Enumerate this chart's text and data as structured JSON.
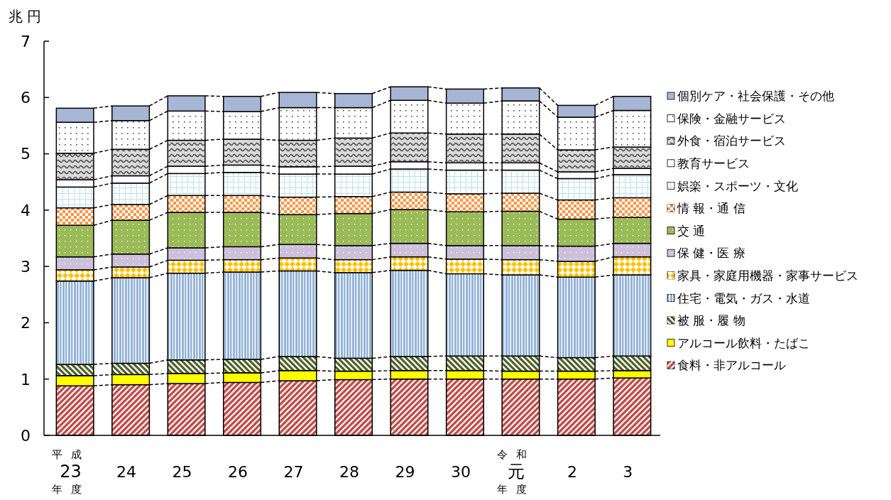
{
  "chart_data": {
    "type": "bar",
    "stacked": true,
    "ylabel": "兆 円",
    "categories": [
      "平成23年度",
      "24",
      "25",
      "26",
      "27",
      "28",
      "29",
      "30",
      "令和元年度",
      "2",
      "3"
    ],
    "ylim": [
      0,
      7
    ],
    "yticks": [
      0,
      1,
      2,
      3,
      4,
      5,
      6,
      7
    ],
    "grid": false,
    "legend": "right",
    "series": [
      {
        "name": "食料・非アルコール",
        "color": "#c0504d",
        "values": [
          0.88,
          0.9,
          0.92,
          0.94,
          0.97,
          0.99,
          1.0,
          1.0,
          1.0,
          1.0,
          1.02
        ]
      },
      {
        "name": "アルコール飲料・たばこ",
        "color": "#ffff00",
        "values": [
          0.18,
          0.18,
          0.18,
          0.17,
          0.18,
          0.15,
          0.15,
          0.15,
          0.14,
          0.14,
          0.13
        ]
      },
      {
        "name": "被 服・履 物",
        "color": "#4f6228",
        "values": [
          0.2,
          0.2,
          0.24,
          0.24,
          0.25,
          0.23,
          0.25,
          0.26,
          0.27,
          0.24,
          0.26
        ]
      },
      {
        "name": "住宅・電気・ガス・水道",
        "color": "#95b3d7",
        "values": [
          1.48,
          1.52,
          1.54,
          1.55,
          1.52,
          1.52,
          1.53,
          1.46,
          1.44,
          1.43,
          1.44
        ]
      },
      {
        "name": "家具・家庭用機器・家事サービス",
        "color": "#ffc000",
        "values": [
          0.2,
          0.19,
          0.23,
          0.22,
          0.23,
          0.23,
          0.24,
          0.26,
          0.27,
          0.28,
          0.32
        ]
      },
      {
        "name": "保 健・医 療",
        "color": "#ccc0da",
        "values": [
          0.23,
          0.23,
          0.22,
          0.23,
          0.24,
          0.25,
          0.24,
          0.24,
          0.25,
          0.27,
          0.24
        ]
      },
      {
        "name": "交 通",
        "color": "#9bbb59",
        "values": [
          0.56,
          0.6,
          0.63,
          0.61,
          0.53,
          0.57,
          0.6,
          0.6,
          0.61,
          0.48,
          0.46
        ]
      },
      {
        "name": "情 報・通 信",
        "color": "#f79646",
        "values": [
          0.31,
          0.28,
          0.3,
          0.3,
          0.31,
          0.3,
          0.31,
          0.32,
          0.32,
          0.34,
          0.35
        ]
      },
      {
        "name": "娯楽・スポーツ・文化",
        "color": "#ffffff",
        "values": [
          0.37,
          0.38,
          0.39,
          0.41,
          0.41,
          0.4,
          0.41,
          0.42,
          0.41,
          0.38,
          0.41
        ]
      },
      {
        "name": "教育サービス",
        "color": "#ffffff",
        "values": [
          0.13,
          0.13,
          0.13,
          0.13,
          0.13,
          0.14,
          0.13,
          0.13,
          0.13,
          0.12,
          0.11
        ]
      },
      {
        "name": "外食・宿泊サービス",
        "color": "#d9d9d9",
        "values": [
          0.47,
          0.47,
          0.46,
          0.46,
          0.47,
          0.5,
          0.51,
          0.51,
          0.51,
          0.39,
          0.38
        ]
      },
      {
        "name": "保険・金融サービス",
        "color": "#ffffff",
        "values": [
          0.55,
          0.51,
          0.52,
          0.49,
          0.58,
          0.54,
          0.58,
          0.55,
          0.59,
          0.58,
          0.65
        ]
      },
      {
        "name": "個別ケア・社会保護・その他",
        "color": "#a6b6d4",
        "values": [
          0.25,
          0.26,
          0.27,
          0.27,
          0.27,
          0.25,
          0.24,
          0.25,
          0.23,
          0.21,
          0.25
        ]
      }
    ]
  }
}
